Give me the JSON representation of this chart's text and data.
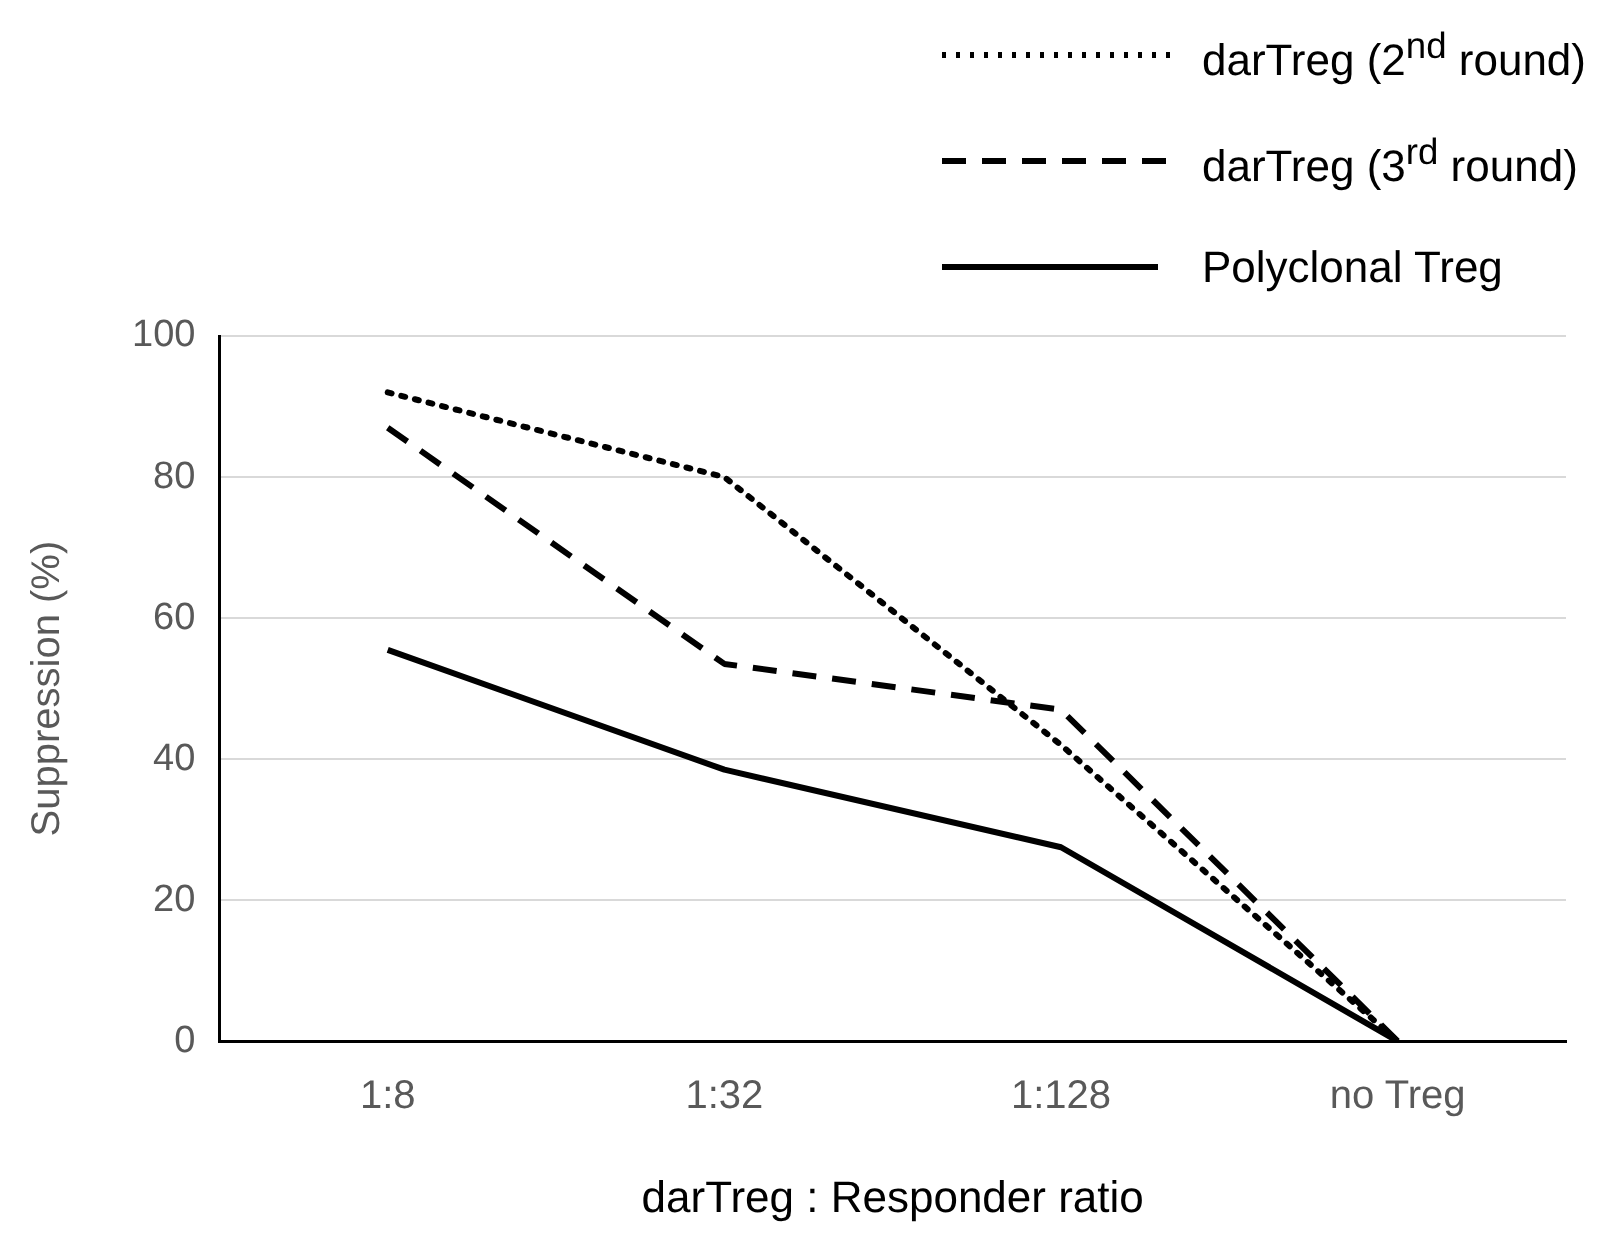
{
  "chart_data": {
    "type": "line",
    "xlabel": "darTreg : Responder ratio",
    "ylabel": "Suppression (%)",
    "categories": [
      "1:8",
      "1:32",
      "1:128",
      "no Treg"
    ],
    "series": [
      {
        "name": "darTreg (2$^{nd}$ round)",
        "color": "#000000",
        "line_style": "dotted",
        "values": [
          92,
          80,
          42,
          0
        ]
      },
      {
        "name": "darTreg (3$^{rd}$ round)",
        "color": "#000000",
        "line_style": "dashed",
        "values": [
          87,
          53.5,
          47,
          0
        ]
      },
      {
        "name": "Polyclonal Treg",
        "color": "#000000",
        "line_style": "solid",
        "values": [
          55.5,
          38.5,
          27.5,
          0
        ]
      }
    ],
    "ylim": [
      0,
      100
    ],
    "yticks": [
      0,
      20,
      40,
      60,
      80,
      100
    ],
    "grid": "y",
    "legend": "top right",
    "marker": "none"
  }
}
